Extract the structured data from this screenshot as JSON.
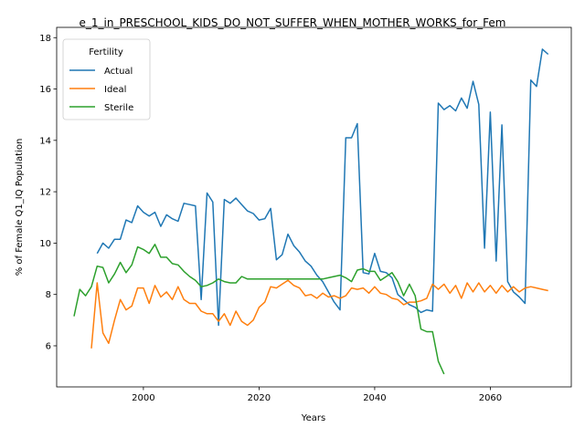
{
  "chart_data": {
    "type": "line",
    "title": "e_1_in_PRESCHOOL_KIDS_DO_NOT_SUFFER_WHEN_MOTHER_WORKS_for_Fem",
    "xlabel": "Years",
    "ylabel": "% of Female Q1_IQ Population",
    "xlim": [
      1985,
      2074
    ],
    "ylim": [
      4.4,
      18.4
    ],
    "xticks": [
      2000,
      2020,
      2040,
      2060
    ],
    "yticks": [
      6,
      8,
      10,
      12,
      14,
      16,
      18
    ],
    "grid": false,
    "legend": {
      "title": "Fertility",
      "placement": "upper-left"
    },
    "series": [
      {
        "name": "Actual",
        "color": "#1f77b4",
        "x": [
          1992,
          1993,
          1994,
          1995,
          1996,
          1997,
          1998,
          1999,
          2000,
          2001,
          2002,
          2003,
          2004,
          2005,
          2006,
          2007,
          2008,
          2009,
          2010,
          2011,
          2012,
          2013,
          2014,
          2015,
          2016,
          2017,
          2018,
          2019,
          2020,
          2021,
          2022,
          2023,
          2024,
          2025,
          2026,
          2027,
          2028,
          2029,
          2030,
          2031,
          2032,
          2033,
          2034,
          2035,
          2036,
          2037,
          2038,
          2039,
          2040,
          2041,
          2042,
          2043,
          2044,
          2045,
          2046,
          2047,
          2048,
          2049,
          2050,
          2051,
          2052,
          2053,
          2054,
          2055,
          2056,
          2057,
          2058,
          2059,
          2060,
          2061,
          2062,
          2063,
          2064,
          2065,
          2066,
          2067,
          2068,
          2069,
          2070
        ],
        "values": [
          9.6,
          10.0,
          9.8,
          10.15,
          10.15,
          10.9,
          10.8,
          11.45,
          11.2,
          11.05,
          11.2,
          10.65,
          11.1,
          10.95,
          10.85,
          11.55,
          11.5,
          11.45,
          7.8,
          11.95,
          11.6,
          6.8,
          11.7,
          11.55,
          11.75,
          11.5,
          11.25,
          11.15,
          10.9,
          10.95,
          11.35,
          9.35,
          9.55,
          10.35,
          9.9,
          9.65,
          9.3,
          9.1,
          8.75,
          8.5,
          8.1,
          7.7,
          7.4,
          14.1,
          14.1,
          14.65,
          8.85,
          8.8,
          9.6,
          8.9,
          8.85,
          8.65,
          8.0,
          7.8,
          7.6,
          7.5,
          7.3,
          7.4,
          7.35,
          15.45,
          15.2,
          15.35,
          15.15,
          15.65,
          15.25,
          16.3,
          15.4,
          9.8,
          15.1,
          9.3,
          14.6,
          8.5,
          8.1,
          7.9,
          7.65,
          16.35,
          16.1,
          17.55,
          17.35
        ]
      },
      {
        "name": "Ideal",
        "color": "#ff7f0e",
        "x": [
          1991,
          1992,
          1993,
          1994,
          1995,
          1996,
          1997,
          1998,
          1999,
          2000,
          2001,
          2002,
          2003,
          2004,
          2005,
          2006,
          2007,
          2008,
          2009,
          2010,
          2011,
          2012,
          2013,
          2014,
          2015,
          2016,
          2017,
          2018,
          2019,
          2020,
          2021,
          2022,
          2023,
          2024,
          2025,
          2026,
          2027,
          2028,
          2029,
          2030,
          2031,
          2032,
          2033,
          2034,
          2035,
          2036,
          2037,
          2038,
          2039,
          2040,
          2041,
          2042,
          2043,
          2044,
          2045,
          2046,
          2047,
          2048,
          2049,
          2050,
          2051,
          2052,
          2053,
          2054,
          2055,
          2056,
          2057,
          2058,
          2059,
          2060,
          2061,
          2062,
          2063,
          2064,
          2065,
          2066,
          2067,
          2068,
          2069,
          2070
        ],
        "values": [
          5.9,
          8.45,
          6.5,
          6.1,
          7.0,
          7.8,
          7.4,
          7.55,
          8.25,
          8.25,
          7.65,
          8.35,
          7.9,
          8.1,
          7.8,
          8.3,
          7.8,
          7.65,
          7.65,
          7.35,
          7.25,
          7.25,
          6.95,
          7.25,
          6.8,
          7.35,
          6.95,
          6.8,
          7.0,
          7.5,
          7.7,
          8.3,
          8.25,
          8.4,
          8.55,
          8.35,
          8.25,
          7.95,
          8.0,
          7.85,
          8.05,
          7.9,
          7.95,
          7.85,
          7.95,
          8.25,
          8.2,
          8.25,
          8.05,
          8.3,
          8.05,
          8.0,
          7.85,
          7.8,
          7.6,
          7.7,
          7.7,
          7.75,
          7.85,
          8.4,
          8.2,
          8.4,
          8.05,
          8.35,
          7.85,
          8.45,
          8.1,
          8.45,
          8.1,
          8.35,
          8.05,
          8.35,
          8.1,
          8.3,
          8.1,
          8.25,
          8.3,
          8.25,
          8.2,
          8.15
        ]
      },
      {
        "name": "Sterile",
        "color": "#2ca02c",
        "x": [
          1988,
          1989,
          1990,
          1991,
          1992,
          1993,
          1994,
          1995,
          1996,
          1997,
          1998,
          1999,
          2000,
          2001,
          2002,
          2003,
          2004,
          2005,
          2006,
          2007,
          2008,
          2009,
          2010,
          2011,
          2012,
          2013,
          2014,
          2015,
          2016,
          2017,
          2018,
          2019,
          2020,
          2021,
          2022,
          2023,
          2024,
          2025,
          2026,
          2027,
          2028,
          2029,
          2030,
          2031,
          2032,
          2033,
          2034,
          2035,
          2036,
          2037,
          2038,
          2039,
          2040,
          2041,
          2042,
          2043,
          2044,
          2045,
          2046,
          2047,
          2048,
          2049,
          2050,
          2051,
          2052
        ],
        "values": [
          7.15,
          8.2,
          7.95,
          8.3,
          9.1,
          9.05,
          8.45,
          8.8,
          9.25,
          8.85,
          9.15,
          9.85,
          9.75,
          9.6,
          9.95,
          9.45,
          9.45,
          9.2,
          9.15,
          8.9,
          8.7,
          8.55,
          8.3,
          8.35,
          8.45,
          8.6,
          8.5,
          8.45,
          8.45,
          8.7,
          8.6,
          8.6,
          8.6,
          8.6,
          8.6,
          8.6,
          8.6,
          8.6,
          8.6,
          8.6,
          8.6,
          8.6,
          8.6,
          8.6,
          8.65,
          8.7,
          8.75,
          8.65,
          8.5,
          8.95,
          9.0,
          8.9,
          8.9,
          8.55,
          8.7,
          8.85,
          8.5,
          7.95,
          8.4,
          7.95,
          6.65,
          6.55,
          6.55,
          5.4,
          4.9
        ]
      }
    ]
  }
}
